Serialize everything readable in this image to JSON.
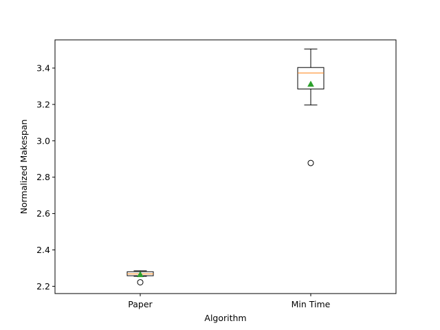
{
  "chart_data": {
    "type": "box",
    "title": "",
    "xlabel": "Algorithm",
    "ylabel": "Normalized Makespan",
    "ylim": [
      2.16,
      3.555
    ],
    "yticks": [
      2.2,
      2.4,
      2.6,
      2.8,
      3.0,
      3.2,
      3.4
    ],
    "ytick_labels": [
      "2.2",
      "2.4",
      "2.6",
      "2.8",
      "3.0",
      "3.2",
      "3.4"
    ],
    "grid": false,
    "categories": [
      "Paper",
      "Min Time"
    ],
    "boxes": [
      {
        "category": "Paper",
        "whisker_low": 2.255,
        "q1": 2.258,
        "median": 2.268,
        "q3": 2.28,
        "whisker_high": 2.285,
        "mean": 2.265,
        "outliers": [
          2.222
        ]
      },
      {
        "category": "Min Time",
        "whisker_low": 3.197,
        "q1": 3.285,
        "median": 3.373,
        "q3": 3.403,
        "whisker_high": 3.505,
        "mean": 3.312,
        "outliers": [
          2.878
        ]
      }
    ],
    "colors": {
      "box": "#000000",
      "median": "#ff7f0e",
      "mean": "#2ca02c",
      "outlier": "#000000"
    }
  }
}
